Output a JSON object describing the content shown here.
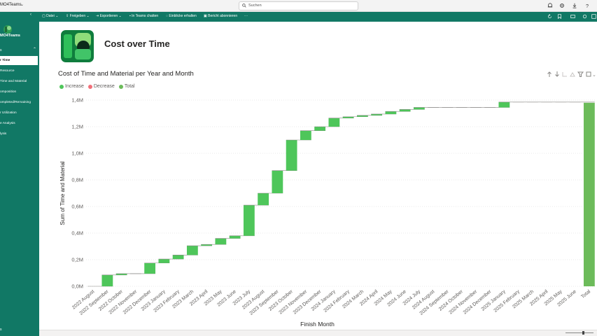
{
  "topbar": {
    "app_name": "MO4Teams",
    "search_placeholder": "Suchen"
  },
  "commandbar": {
    "items": [
      "Datei",
      "Freigeben",
      "Exportieren",
      "In Teams chatten",
      "Einblicke erhalten",
      "Bericht abonnieren",
      "···"
    ]
  },
  "sidebar": {
    "workspace_name": "MO4Teams",
    "section_label": "s",
    "items": [
      {
        "label": "r Time",
        "active": true
      },
      {
        "label": "Resource",
        "active": false
      },
      {
        "label": "Time and Material",
        "active": false
      },
      {
        "label": "omposition",
        "active": false
      },
      {
        "label": "ompleted/Remaining",
        "active": false
      },
      {
        "label": "r Utilization",
        "active": false
      },
      {
        "label": "e Analysis",
        "active": false
      },
      {
        "label": "lysis",
        "active": false
      }
    ],
    "bottom_label": "s"
  },
  "page": {
    "title": "Cost over Time",
    "visual_title": "Cost of Time and Material per Year and Month"
  },
  "colors": {
    "increase": "#4ec65a",
    "decrease": "#f1707a",
    "total": "#6cbb5a",
    "brand": "#117865"
  },
  "chart_data": {
    "type": "waterfall",
    "legend": [
      {
        "name": "Increase",
        "color": "#4ec65a"
      },
      {
        "name": "Decrease",
        "color": "#f1707a"
      },
      {
        "name": "Total",
        "color": "#6cbb5a"
      }
    ],
    "xlabel": "Finish Month",
    "ylabel": "Sum of Time and Material",
    "ylim": [
      0,
      1.4
    ],
    "yticks": [
      "0,0M",
      "0,2M",
      "0,4M",
      "0,6M",
      "0,8M",
      "1,0M",
      "1,2M",
      "1,4M"
    ],
    "categories": [
      "2022 August",
      "2022 September",
      "2022 October",
      "2022 November",
      "2022 December",
      "2023 January",
      "2023 February",
      "2023 March",
      "2023 April",
      "2023 May",
      "2023 June",
      "2023 July",
      "2023 August",
      "2023 September",
      "2023 October",
      "2023 November",
      "2023 December",
      "2024 January",
      "2024 February",
      "2024 March",
      "2024 April",
      "2024 May",
      "2024 June",
      "2024 July",
      "2024 August",
      "2024 September",
      "2024 October",
      "2024 November",
      "2024 December",
      "2025 January",
      "2025 February",
      "2025 March",
      "2025 April",
      "2025 May",
      "2025 June",
      "Total"
    ],
    "values": [
      0.0,
      0.085,
      0.01,
      0.0,
      0.08,
      0.03,
      0.03,
      0.07,
      0.01,
      0.045,
      0.02,
      0.23,
      0.09,
      0.17,
      0.23,
      0.07,
      0.03,
      0.065,
      0.01,
      0.01,
      0.01,
      0.02,
      0.015,
      0.015,
      0.0,
      0.0,
      0.0,
      0.0,
      0.0,
      0.04,
      0.0,
      0.0,
      0.0,
      0.0,
      0.0,
      1.38
    ],
    "total_index": 35
  }
}
